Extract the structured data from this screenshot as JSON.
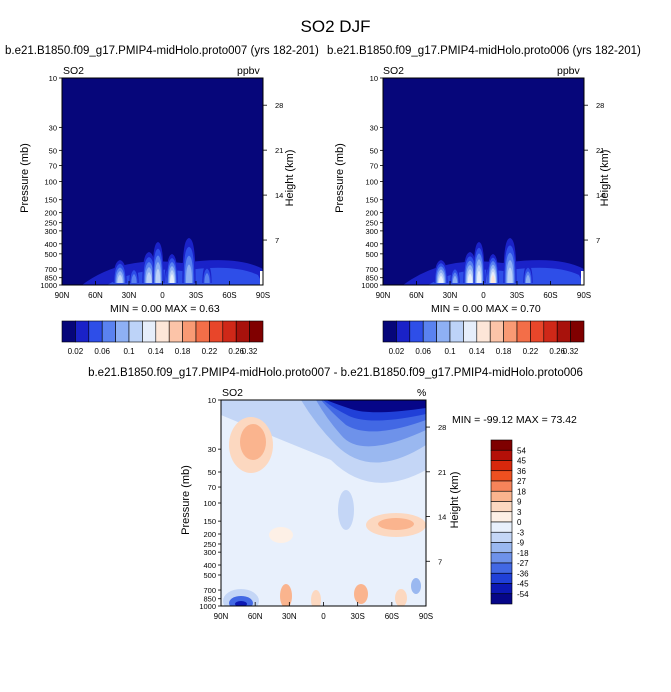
{
  "figure": {
    "title": "SO2 DJF"
  },
  "panels": [
    {
      "title": "b.e21.B1850.f09_g17.PMIP4-midHolo.proto007 (yrs 182-201)",
      "left_label": "SO2",
      "right_label": "ppbv",
      "min_max": "MIN =    0.00   MAX =    0.63"
    },
    {
      "title": "b.e21.B1850.f09_g17.PMIP4-midHolo.proto006 (yrs 182-201)",
      "left_label": "SO2",
      "right_label": "ppbv",
      "min_max": "MIN =    0.00   MAX =    0.70"
    },
    {
      "title": "b.e21.B1850.f09_g17.PMIP4-midHolo.proto007 - b.e21.B1850.f09_g17.PMIP4-midHolo.proto006",
      "left_label": "SO2",
      "right_label": "%",
      "min_max": "MIN = -99.12   MAX =  73.42"
    }
  ],
  "chart_data": [
    {
      "type": "heatmap",
      "title": "b.e21.B1850.f09_g17.PMIP4-midHolo.proto007 (yrs 182-201)",
      "variable": "SO2",
      "units": "ppbv",
      "xlabel": "",
      "ylabel": "Pressure (mb)",
      "y2label": "Height (km)",
      "x_ticks": [
        "90N",
        "60N",
        "30N",
        "0",
        "30S",
        "60S",
        "90S"
      ],
      "y_ticks": [
        10,
        30,
        50,
        70,
        100,
        150,
        200,
        250,
        300,
        400,
        500,
        700,
        850,
        1000
      ],
      "y2_ticks": [
        28,
        21,
        14,
        7
      ],
      "min": 0.0,
      "max": 0.63
    },
    {
      "type": "heatmap",
      "title": "b.e21.B1850.f09_g17.PMIP4-midHolo.proto006 (yrs 182-201)",
      "variable": "SO2",
      "units": "ppbv",
      "xlabel": "",
      "ylabel": "Pressure (mb)",
      "y2label": "Height (km)",
      "x_ticks": [
        "90N",
        "60N",
        "30N",
        "0",
        "30S",
        "60S",
        "90S"
      ],
      "y_ticks": [
        10,
        30,
        50,
        70,
        100,
        150,
        200,
        250,
        300,
        400,
        500,
        700,
        850,
        1000
      ],
      "y2_ticks": [
        28,
        21,
        14,
        7
      ],
      "min": 0.0,
      "max": 0.7
    },
    {
      "type": "heatmap",
      "title": "b.e21.B1850.f09_g17.PMIP4-midHolo.proto007 - b.e21.B1850.f09_g17.PMIP4-midHolo.proto006",
      "variable": "SO2",
      "units": "%",
      "xlabel": "",
      "ylabel": "Pressure (mb)",
      "y2label": "Height (km)",
      "x_ticks": [
        "90N",
        "60N",
        "30N",
        "0",
        "30S",
        "60S",
        "90S"
      ],
      "y_ticks": [
        10,
        30,
        50,
        70,
        100,
        150,
        200,
        250,
        300,
        400,
        500,
        700,
        850,
        1000
      ],
      "y2_ticks": [
        28,
        21,
        14,
        7
      ],
      "min": -99.12,
      "max": 73.42
    }
  ],
  "colorbar_abs": {
    "labels": [
      "0.02",
      "0.06",
      "0.1",
      "0.14",
      "0.18",
      "0.22",
      "0.26",
      "0.32"
    ],
    "levels": [
      0.02,
      0.04,
      0.06,
      0.08,
      0.1,
      0.12,
      0.14,
      0.16,
      0.18,
      0.2,
      0.22,
      0.24,
      0.26,
      0.28,
      0.32
    ],
    "colors": [
      "#06067a",
      "#1a22c8",
      "#2e4ee8",
      "#5a82f0",
      "#8eb0f4",
      "#bdd3f8",
      "#e6eefb",
      "#fde6d8",
      "#fcc4a8",
      "#f99a74",
      "#f36e48",
      "#e8462a",
      "#cf2818",
      "#a8120c",
      "#800000"
    ]
  },
  "colorbar_diff": {
    "labels": [
      "54",
      "45",
      "36",
      "27",
      "18",
      "9",
      "3",
      "0",
      "-3",
      "-9",
      "-18",
      "-27",
      "-36",
      "-45",
      "-54"
    ],
    "colors": [
      "#7e0000",
      "#b41008",
      "#d8280c",
      "#ee5020",
      "#f6845a",
      "#fab48e",
      "#fcd8c0",
      "#fdf0e6",
      "#e8f0fc",
      "#c4d6f6",
      "#9ab8f0",
      "#6e92ea",
      "#4268e4",
      "#2040d8",
      "#0c18b4",
      "#060688"
    ]
  }
}
